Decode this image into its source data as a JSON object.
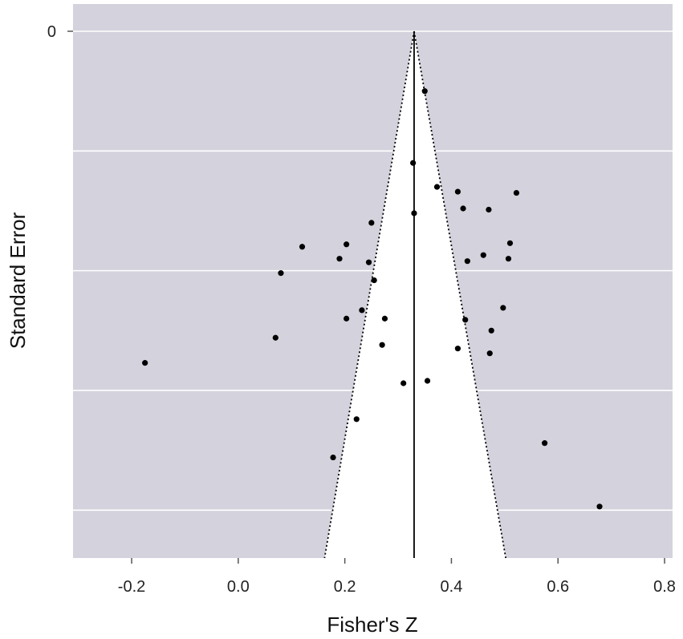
{
  "chart_data": {
    "type": "scatter",
    "title": "",
    "xlabel": "Fisher's Z",
    "ylabel": "Standard Error",
    "xlim": [
      -0.31,
      0.815
    ],
    "ylim": [
      0,
      0.22
    ],
    "y_reversed": true,
    "x_ticks": [
      -0.2,
      0.0,
      0.2,
      0.4,
      0.6,
      0.8
    ],
    "x_tick_labels": [
      "-0.2",
      "0.0",
      "0.2",
      "0.4",
      "0.6",
      "0.8"
    ],
    "y_ticks": [
      0
    ],
    "y_tick_labels": [
      "0"
    ],
    "y_gridlines": [
      0,
      0.05,
      0.1,
      0.15,
      0.2
    ],
    "grid": true,
    "legend": "none",
    "funnel": {
      "center": 0.33,
      "tip_se": 0,
      "base_se": 0.22,
      "left_at_base": 0.162,
      "right_at_base": 0.502,
      "style": "dotted"
    },
    "mean_line": {
      "x": 0.33,
      "style": "solid"
    },
    "points": [
      {
        "x": 0.35,
        "y": 0.025
      },
      {
        "x": 0.328,
        "y": 0.055
      },
      {
        "x": 0.373,
        "y": 0.065
      },
      {
        "x": 0.412,
        "y": 0.067
      },
      {
        "x": 0.522,
        "y": 0.0675
      },
      {
        "x": 0.422,
        "y": 0.074
      },
      {
        "x": 0.47,
        "y": 0.0745
      },
      {
        "x": 0.33,
        "y": 0.076
      },
      {
        "x": 0.25,
        "y": 0.08
      },
      {
        "x": 0.12,
        "y": 0.09
      },
      {
        "x": 0.203,
        "y": 0.089
      },
      {
        "x": 0.51,
        "y": 0.0885
      },
      {
        "x": 0.46,
        "y": 0.0935
      },
      {
        "x": 0.507,
        "y": 0.095
      },
      {
        "x": 0.43,
        "y": 0.096
      },
      {
        "x": 0.19,
        "y": 0.095
      },
      {
        "x": 0.245,
        "y": 0.0965
      },
      {
        "x": 0.08,
        "y": 0.101
      },
      {
        "x": 0.255,
        "y": 0.104
      },
      {
        "x": 0.497,
        "y": 0.1155
      },
      {
        "x": 0.232,
        "y": 0.1165
      },
      {
        "x": 0.203,
        "y": 0.12
      },
      {
        "x": 0.275,
        "y": 0.12
      },
      {
        "x": 0.426,
        "y": 0.1205
      },
      {
        "x": 0.475,
        "y": 0.125
      },
      {
        "x": 0.07,
        "y": 0.128
      },
      {
        "x": 0.27,
        "y": 0.131
      },
      {
        "x": 0.412,
        "y": 0.1325
      },
      {
        "x": 0.472,
        "y": 0.1345
      },
      {
        "x": -0.175,
        "y": 0.1385
      },
      {
        "x": 0.355,
        "y": 0.146
      },
      {
        "x": 0.31,
        "y": 0.147
      },
      {
        "x": 0.222,
        "y": 0.162
      },
      {
        "x": 0.575,
        "y": 0.172
      },
      {
        "x": 0.178,
        "y": 0.178
      },
      {
        "x": 0.678,
        "y": 0.1985
      }
    ],
    "colors": {
      "panel_background": "#d4d2dc",
      "gridline": "#ffffff",
      "funnel_fill": "#ffffff",
      "points": "#000000",
      "lines": "#000000",
      "axis_tick": "#555555"
    }
  }
}
